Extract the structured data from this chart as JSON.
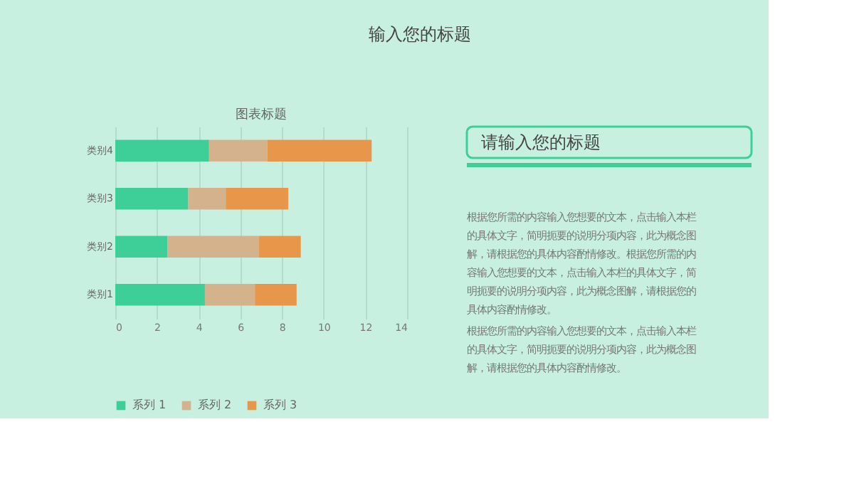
{
  "chart_data": {
    "type": "bar",
    "orientation": "horizontal",
    "stacked": true,
    "title": "图表标题",
    "categories": [
      "类别4",
      "类别3",
      "类别2",
      "类别1"
    ],
    "series": [
      {
        "name": "系列 1",
        "color": "#3ecf98",
        "values": [
          4.5,
          3.5,
          2.5,
          4.3
        ]
      },
      {
        "name": "系列 2",
        "color": "#d4b28c",
        "values": [
          2.8,
          1.8,
          4.4,
          2.4
        ]
      },
      {
        "name": "系列 3",
        "color": "#e8974a",
        "values": [
          5,
          3,
          2,
          2
        ]
      }
    ],
    "xlim": [
      0,
      14
    ],
    "xticks": [
      0,
      2,
      4,
      6,
      8,
      10,
      12,
      14
    ],
    "grid": "x",
    "legend": "bottom",
    "annotations": [
      "输入您的标题",
      "请输入您的标题",
      "根据您所需的内容输入您想要的文本，点击输入本栏的具体文字，简明扼要的说明分项内容，此为概念图解，请根据您的具体内容酌情修改。根据您所需的内容输入您想要的文本，点击输入本栏的具体文字，简明扼要的说明分项内容，此为概念图解，请根据您的具体内容酌情修改。",
      "根据您所需的内容输入您想要的文本，点击输入本栏的具体文字，简明扼要的说明分项内容，此为概念图解，请根据您的具体内容酌情修改。"
    ]
  }
}
